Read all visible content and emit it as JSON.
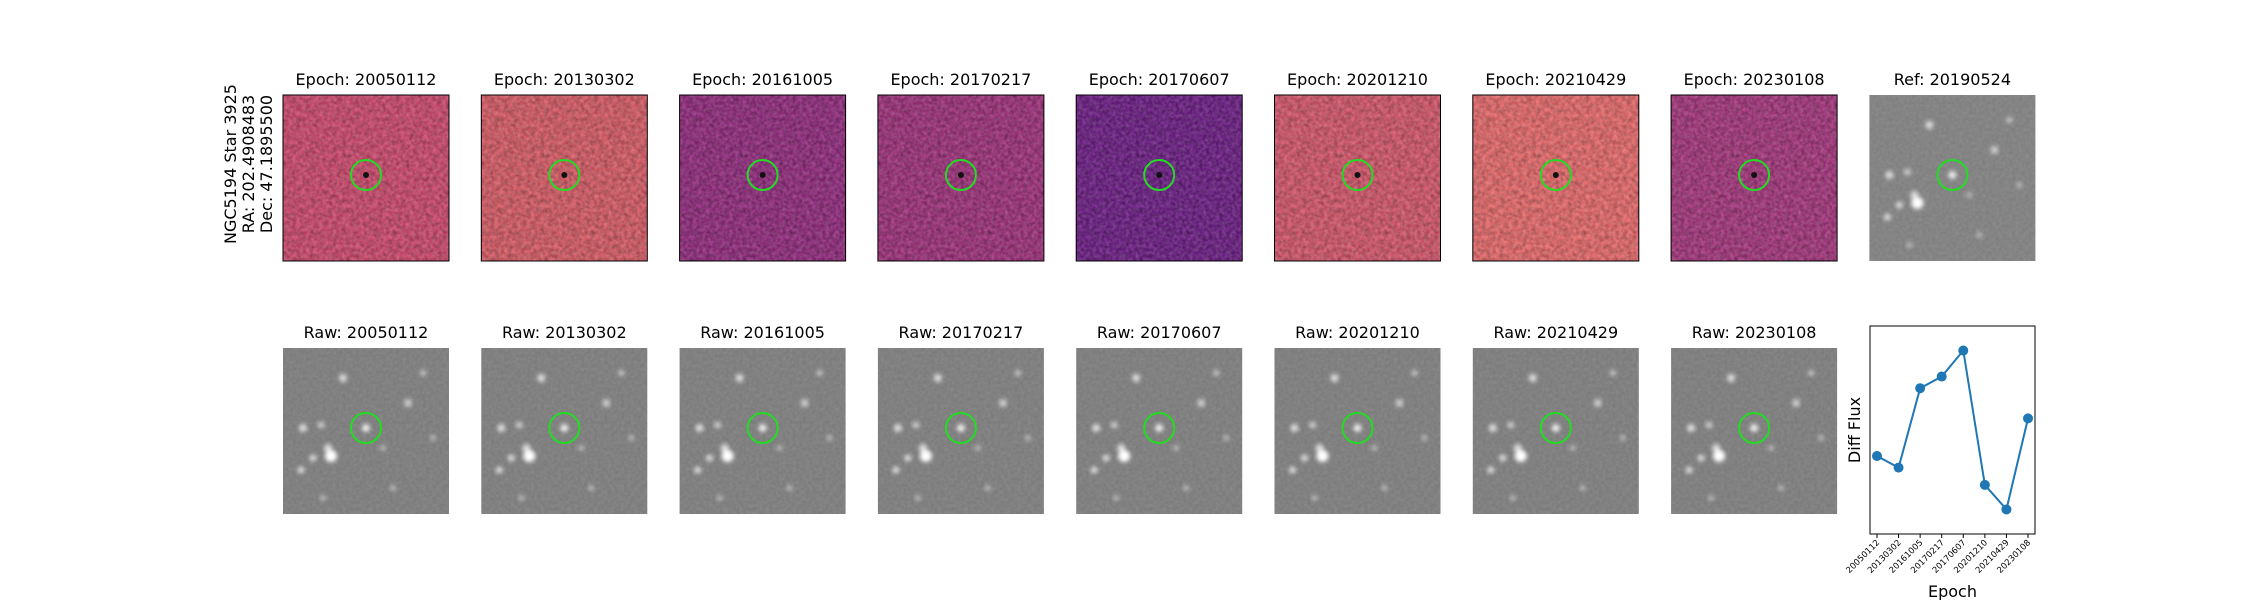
{
  "side_label": [
    "NGC5194 Star 3925",
    "RA: 202.4908483",
    "Dec: 47.1895500"
  ],
  "diff_panels": [
    "Epoch: 20050112",
    "Epoch: 20130302",
    "Epoch: 20161005",
    "Epoch: 20170217",
    "Epoch: 20170607",
    "Epoch: 20201210",
    "Epoch: 20210429",
    "Epoch: 20230108"
  ],
  "ref_panel": "Ref: 20190524",
  "raw_panels": [
    "Raw: 20050112",
    "Raw: 20130302",
    "Raw: 20161005",
    "Raw: 20170217",
    "Raw: 20170607",
    "Raw: 20201210",
    "Raw: 20210429",
    "Raw: 20230108"
  ],
  "chart_data": {
    "type": "line",
    "ylabel": "Diff Flux",
    "xlabel": "Epoch",
    "categories": [
      "20050112",
      "20130302",
      "20161005",
      "20170217",
      "20170607",
      "20201210",
      "20210429",
      "20230108"
    ],
    "series": [
      {
        "color": "#1f77b4",
        "values": [
          0.375,
          0.319,
          0.701,
          0.757,
          0.882,
          0.236,
          0.118,
          0.556
        ]
      }
    ],
    "ylim": [
      0,
      1
    ]
  }
}
